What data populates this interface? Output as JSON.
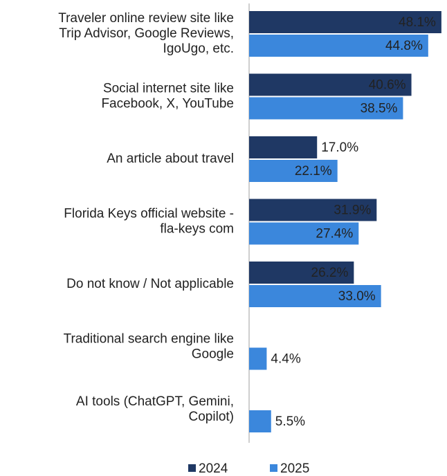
{
  "chart_data": {
    "type": "bar",
    "orientation": "horizontal",
    "categories": [
      [
        "Traveler online review site like",
        "Trip Advisor, Google Reviews,",
        "IgoUgo, etc."
      ],
      [
        "Social internet site like",
        "Facebook, X, YouTube"
      ],
      [
        "An article about travel"
      ],
      [
        "Florida Keys official website -",
        "fla-keys com"
      ],
      [
        "Do not know / Not applicable"
      ],
      [
        "Traditional search engine like",
        "Google"
      ],
      [
        "AI tools (ChatGPT, Gemini,",
        "Copilot)"
      ]
    ],
    "series": [
      {
        "name": "2024",
        "color": "#1f3864",
        "values": [
          48.1,
          40.6,
          17.0,
          31.9,
          26.2,
          null,
          null
        ],
        "value_labels": [
          "48.1%",
          "40.6%",
          "17.0%",
          "31.9%",
          "26.2%",
          null,
          null
        ]
      },
      {
        "name": "2025",
        "color": "#3b87dc",
        "values": [
          44.8,
          38.5,
          22.1,
          27.4,
          33.0,
          4.4,
          5.5
        ],
        "value_labels": [
          "44.8%",
          "38.5%",
          "22.1%",
          "27.4%",
          "33.0%",
          "4.4%",
          "5.5%"
        ]
      }
    ],
    "xlim": [
      0,
      49.5
    ],
    "legend": "bottom"
  }
}
